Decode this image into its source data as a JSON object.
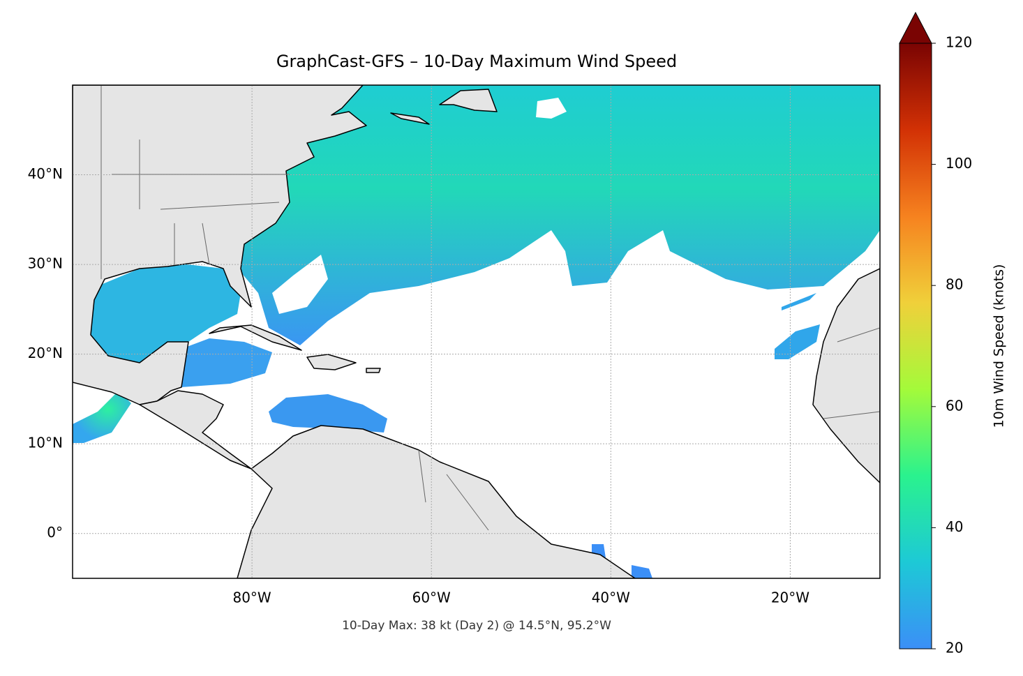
{
  "chart_data": {
    "type": "map",
    "title": "GraphCast-GFS – 10-Day Maximum Wind Speed",
    "footnote": "10-Day Max: 38 kt (Day 2) @ 14.5°N, 95.2°W",
    "xlim": [
      -100,
      -10
    ],
    "ylim": [
      -5,
      50
    ],
    "xticks": [
      {
        "value": -80,
        "label": "80°W"
      },
      {
        "value": -60,
        "label": "60°W"
      },
      {
        "value": -40,
        "label": "40°W"
      },
      {
        "value": -20,
        "label": "20°W"
      }
    ],
    "yticks": [
      {
        "value": 0,
        "label": "0°"
      },
      {
        "value": 10,
        "label": "10°N"
      },
      {
        "value": 20,
        "label": "20°N"
      },
      {
        "value": 30,
        "label": "30°N"
      },
      {
        "value": 40,
        "label": "40°N"
      }
    ],
    "grid": true,
    "colorbar": {
      "label": "10m Wind Speed (knots)",
      "lim": [
        20,
        120
      ],
      "ticks": [
        20,
        40,
        60,
        80,
        100,
        120
      ],
      "colors": [
        "#3b8ff7",
        "#1dc9d6",
        "#2af28e",
        "#a4fa3a",
        "#f0d03a",
        "#f6821f",
        "#d23105",
        "#7a0403"
      ]
    }
  }
}
